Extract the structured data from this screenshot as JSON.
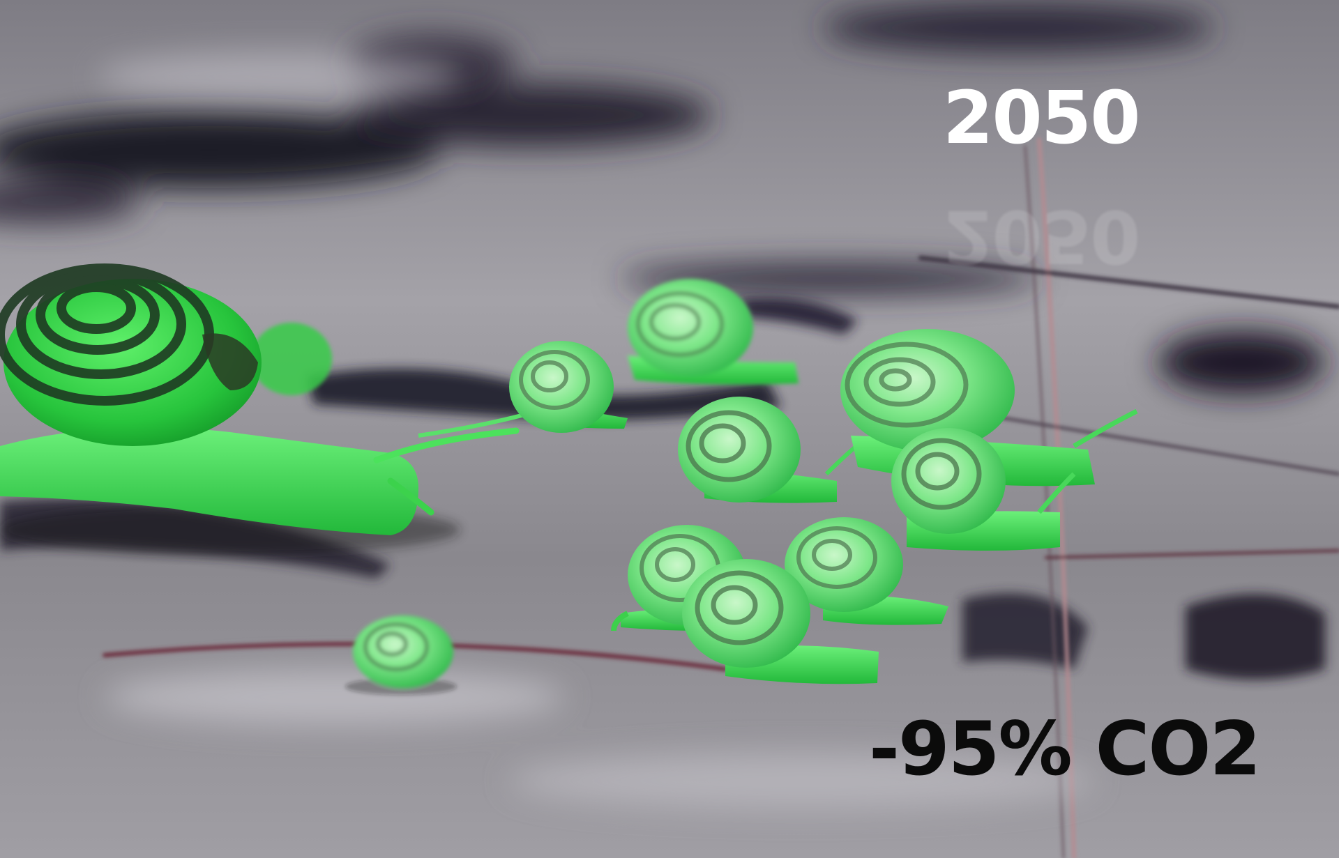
{
  "overlay": {
    "year": "2050",
    "year_reflection": "2050",
    "co2_reduction": "-95% CO2"
  },
  "scene": {
    "subject": "snail-group",
    "colors": {
      "snail_green": "#33d94a",
      "snail_green_light": "#a8f0ac",
      "shell_stripe": "#1e3a22",
      "ground_grey": "#8e8c90",
      "dark_puddle": "#1f1c2a",
      "year_text_color": "#ffffff",
      "co2_text_color": "#0b0b0b"
    }
  }
}
